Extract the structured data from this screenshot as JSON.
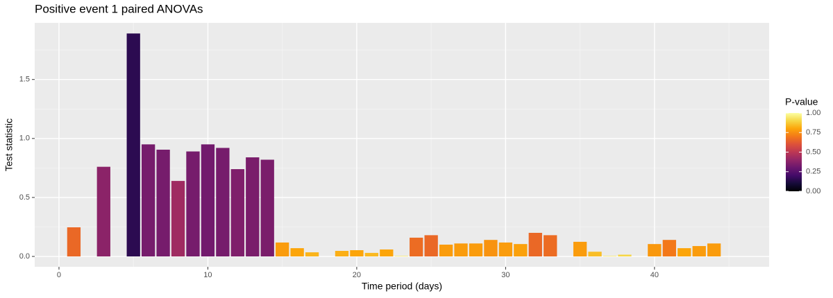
{
  "chart_data": {
    "type": "bar",
    "title": "Positive event 1 paired ANOVAs",
    "x_label": "Time period (days)",
    "y_label": "Test statistic",
    "legend_title": "P-value",
    "x": [
      1,
      3,
      5,
      6,
      7,
      8,
      9,
      10,
      11,
      12,
      13,
      14,
      15,
      16,
      17,
      19,
      20,
      21,
      22,
      23,
      24,
      25,
      26,
      27,
      28,
      29,
      30,
      31,
      32,
      33,
      35,
      36,
      37,
      38,
      40,
      41,
      42,
      43,
      44
    ],
    "values": [
      0.247,
      0.76,
      1.89,
      0.95,
      0.905,
      0.64,
      0.89,
      0.95,
      0.92,
      0.74,
      0.84,
      0.82,
      0.118,
      0.07,
      0.035,
      0.047,
      0.053,
      0.03,
      0.059,
      0.005,
      0.159,
      0.18,
      0.1,
      0.11,
      0.11,
      0.14,
      0.118,
      0.105,
      0.2,
      0.18,
      0.124,
      0.04,
      0.005,
      0.015,
      0.105,
      0.14,
      0.07,
      0.088,
      0.11
    ],
    "pvalues": [
      0.66,
      0.38,
      0.15,
      0.33,
      0.33,
      0.43,
      0.33,
      0.32,
      0.33,
      0.35,
      0.34,
      0.34,
      0.78,
      0.8,
      0.83,
      0.82,
      0.8,
      0.84,
      0.8,
      0.95,
      0.67,
      0.66,
      0.78,
      0.78,
      0.78,
      0.76,
      0.78,
      0.79,
      0.66,
      0.67,
      0.78,
      0.85,
      0.95,
      0.9,
      0.77,
      0.7,
      0.8,
      0.78,
      0.78
    ],
    "palette": [
      "#000004",
      "#160b39",
      "#420a68",
      "#6a176e",
      "#932667",
      "#bc3754",
      "#dd513a",
      "#f37819",
      "#fca50a",
      "#f6d746",
      "#fcffa4"
    ],
    "xlim": [
      -1.63,
      47.7
    ],
    "ylim": [
      -0.088,
      1.98
    ],
    "xticks": [
      0,
      10,
      20,
      30,
      40
    ],
    "yticks": [
      {
        "value": 0,
        "label": "0.0"
      },
      {
        "value": 0.5,
        "label": "0.5"
      },
      {
        "value": 1,
        "label": "1.0"
      },
      {
        "value": 1.5,
        "label": "1.5"
      }
    ],
    "minor_xticks": [
      5,
      15,
      25,
      35,
      45
    ],
    "minor_yticks": [
      0.25,
      0.75,
      1.25,
      1.75
    ],
    "colorbar_ticks": [
      {
        "value": 0,
        "label": "0.00"
      },
      {
        "value": 0.25,
        "label": "0.25"
      },
      {
        "value": 0.5,
        "label": "0.50"
      },
      {
        "value": 0.75,
        "label": "0.75"
      },
      {
        "value": 1,
        "label": "1.00"
      }
    ],
    "bar_width": 0.9,
    "grid": true
  }
}
